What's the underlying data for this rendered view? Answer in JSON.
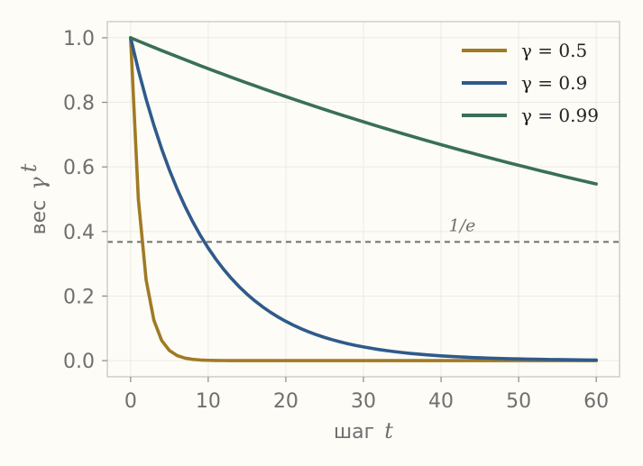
{
  "chart_data": {
    "type": "line",
    "title": "",
    "xlabel": "шаг t",
    "xlabel_parts": {
      "text": "шаг",
      "var": "t"
    },
    "ylabel": "вес γ^t",
    "ylabel_parts": {
      "text": "вес",
      "base": "γ",
      "sup": "t"
    },
    "xlim": [
      -3,
      63
    ],
    "ylim": [
      -0.05,
      1.05
    ],
    "xticks": [
      0,
      10,
      20,
      30,
      40,
      50,
      60
    ],
    "xtick_labels": [
      "0",
      "10",
      "20",
      "30",
      "40",
      "50",
      "60"
    ],
    "yticks": [
      0.0,
      0.2,
      0.4,
      0.6,
      0.8,
      1.0
    ],
    "ytick_labels": [
      "0.0",
      "0.2",
      "0.4",
      "0.6",
      "0.8",
      "1.0"
    ],
    "grid": true,
    "legend_position": "top-right",
    "series": [
      {
        "name": "γ = 0.5",
        "gamma": 0.5,
        "color": "#a07a25",
        "x": [
          0,
          1,
          2,
          3,
          4,
          5,
          6,
          7,
          8,
          9,
          10,
          11,
          12,
          13,
          14,
          15,
          16,
          17,
          18,
          19,
          20,
          21,
          22,
          23,
          24,
          25,
          26,
          27,
          28,
          29,
          30,
          31,
          32,
          33,
          34,
          35,
          36,
          37,
          38,
          39,
          40,
          41,
          42,
          43,
          44,
          45,
          46,
          47,
          48,
          49,
          50,
          51,
          52,
          53,
          54,
          55,
          56,
          57,
          58,
          59,
          60
        ],
        "y": [
          1.0,
          0.5,
          0.25,
          0.125,
          0.0625,
          0.03125,
          0.015625,
          0.0078125,
          0.0039063,
          0.0019531,
          0.0009766,
          0.0004883,
          0.0002441,
          0.0001221,
          6.1e-05,
          3.05e-05,
          1.53e-05,
          7.6e-06,
          3.8e-06,
          1.9e-06,
          1e-06,
          0,
          0,
          0,
          0,
          0,
          0,
          0,
          0,
          0,
          0,
          0,
          0,
          0,
          0,
          0,
          0,
          0,
          0,
          0,
          0,
          0,
          0,
          0,
          0,
          0,
          0,
          0,
          0,
          0,
          0,
          0,
          0,
          0,
          0,
          0,
          0,
          0,
          0,
          0,
          0
        ]
      },
      {
        "name": "γ = 0.9",
        "gamma": 0.9,
        "color": "#2f5a8c",
        "x": [
          0,
          1,
          2,
          3,
          4,
          5,
          6,
          7,
          8,
          9,
          10,
          11,
          12,
          13,
          14,
          15,
          16,
          17,
          18,
          19,
          20,
          21,
          22,
          23,
          24,
          25,
          26,
          27,
          28,
          29,
          30,
          31,
          32,
          33,
          34,
          35,
          36,
          37,
          38,
          39,
          40,
          41,
          42,
          43,
          44,
          45,
          46,
          47,
          48,
          49,
          50,
          51,
          52,
          53,
          54,
          55,
          56,
          57,
          58,
          59,
          60
        ],
        "y": [
          1.0,
          0.9,
          0.81,
          0.729,
          0.6561,
          0.5905,
          0.5314,
          0.4783,
          0.4305,
          0.3874,
          0.3487,
          0.3138,
          0.2824,
          0.2542,
          0.2288,
          0.2059,
          0.1853,
          0.1668,
          0.1501,
          0.1351,
          0.1216,
          0.1094,
          0.0985,
          0.0886,
          0.0798,
          0.0718,
          0.0646,
          0.0581,
          0.0523,
          0.0471,
          0.0424,
          0.0382,
          0.0343,
          0.0309,
          0.0278,
          0.025,
          0.0225,
          0.0203,
          0.0182,
          0.0164,
          0.0148,
          0.0133,
          0.012,
          0.0108,
          0.0097,
          0.0087,
          0.0079,
          0.0071,
          0.0064,
          0.0057,
          0.0052,
          0.0046,
          0.0042,
          0.0038,
          0.0034,
          0.0031,
          0.0028,
          0.0025,
          0.0022,
          0.002,
          0.0018
        ]
      },
      {
        "name": "γ = 0.99",
        "gamma": 0.99,
        "color": "#3a6f58",
        "x": [
          0,
          1,
          2,
          3,
          4,
          5,
          6,
          7,
          8,
          9,
          10,
          11,
          12,
          13,
          14,
          15,
          16,
          17,
          18,
          19,
          20,
          21,
          22,
          23,
          24,
          25,
          26,
          27,
          28,
          29,
          30,
          31,
          32,
          33,
          34,
          35,
          36,
          37,
          38,
          39,
          40,
          41,
          42,
          43,
          44,
          45,
          46,
          47,
          48,
          49,
          50,
          51,
          52,
          53,
          54,
          55,
          56,
          57,
          58,
          59,
          60
        ],
        "y": [
          1.0,
          0.99,
          0.9801,
          0.9703,
          0.9606,
          0.951,
          0.9415,
          0.9321,
          0.9227,
          0.9135,
          0.9044,
          0.8953,
          0.8864,
          0.8775,
          0.8687,
          0.86,
          0.8515,
          0.8429,
          0.8345,
          0.8262,
          0.8179,
          0.8097,
          0.8016,
          0.7936,
          0.7857,
          0.7778,
          0.77,
          0.7623,
          0.7547,
          0.7472,
          0.7397,
          0.7323,
          0.725,
          0.7177,
          0.7106,
          0.7034,
          0.6964,
          0.6894,
          0.6826,
          0.6757,
          0.669,
          0.6623,
          0.6557,
          0.6491,
          0.6426,
          0.6362,
          0.6298,
          0.6235,
          0.6173,
          0.6111,
          0.605,
          0.599,
          0.593,
          0.587,
          0.5812,
          0.5754,
          0.5696,
          0.5639,
          0.5583,
          0.5527,
          0.5472
        ]
      }
    ],
    "reference_lines": [
      {
        "y": 0.3679,
        "label": "1/e",
        "style": "dashed",
        "color": "#6f6f6f"
      }
    ]
  }
}
